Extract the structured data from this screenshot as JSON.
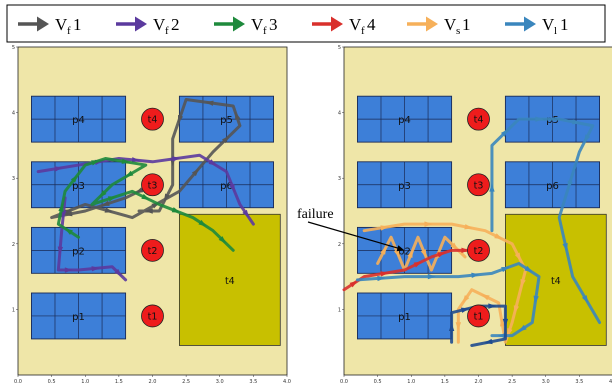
{
  "legend": [
    {
      "main": "V",
      "sub": "f",
      "num": "1",
      "color": "#555555"
    },
    {
      "main": "V",
      "sub": "f",
      "num": "2",
      "color": "#5b3a9e"
    },
    {
      "main": "V",
      "sub": "f",
      "num": "3",
      "color": "#1e8a3c"
    },
    {
      "main": "V",
      "sub": "f",
      "num": "4",
      "color": "#d9302c"
    },
    {
      "main": "V",
      "sub": "s",
      "num": "1",
      "color": "#f6b05a"
    },
    {
      "main": "V",
      "sub": "l",
      "num": "1",
      "color": "#3a86bd"
    }
  ],
  "panels": [
    {
      "xticks": [
        "0.0",
        "0.5",
        "1.0",
        "1.5",
        "2.0",
        "2.5",
        "3.0",
        "3.5",
        "4.0"
      ],
      "yticks": [
        "1",
        "2",
        "3",
        "4",
        "5"
      ],
      "blocks": [
        {
          "label": "p4",
          "x0": 0.2,
          "y0": 3.55,
          "x1": 1.6,
          "y1": 4.25
        },
        {
          "label": "p3",
          "x0": 0.2,
          "y0": 2.55,
          "x1": 1.6,
          "y1": 3.25
        },
        {
          "label": "p2",
          "x0": 0.2,
          "y0": 1.55,
          "x1": 1.6,
          "y1": 2.25
        },
        {
          "label": "p1",
          "x0": 0.2,
          "y0": 0.55,
          "x1": 1.6,
          "y1": 1.25
        },
        {
          "label": "p5",
          "x0": 2.4,
          "y0": 3.55,
          "x1": 3.8,
          "y1": 4.25
        },
        {
          "label": "p6",
          "x0": 2.4,
          "y0": 2.55,
          "x1": 3.8,
          "y1": 3.25
        }
      ],
      "stations": [
        {
          "label": "t4",
          "x": 2.0,
          "y": 3.9
        },
        {
          "label": "t3",
          "x": 2.0,
          "y": 2.9
        },
        {
          "label": "t2",
          "x": 2.0,
          "y": 1.9
        },
        {
          "label": "t1",
          "x": 2.0,
          "y": 0.9
        }
      ],
      "big_area": {
        "label": "t4",
        "x0": 2.4,
        "y0": 0.45,
        "x1": 3.9,
        "y1": 2.45
      },
      "trajectories": [
        {
          "color": "#555555",
          "points": [
            [
              2.0,
              2.9
            ],
            [
              1.6,
              2.7
            ],
            [
              1.0,
              2.5
            ],
            [
              0.5,
              2.4
            ],
            [
              1.0,
              2.6
            ],
            [
              1.7,
              2.4
            ],
            [
              2.4,
              2.8
            ],
            [
              2.9,
              3.4
            ],
            [
              3.3,
              3.8
            ],
            [
              3.2,
              4.1
            ],
            [
              2.5,
              4.2
            ],
            [
              2.3,
              3.6
            ],
            [
              2.3,
              2.9
            ],
            [
              2.1,
              2.5
            ],
            [
              1.8,
              2.5
            ]
          ]
        },
        {
          "color": "#5b3a9e",
          "points": [
            [
              0.3,
              3.1
            ],
            [
              0.9,
              3.2
            ],
            [
              1.5,
              3.3
            ],
            [
              2.0,
              3.25
            ],
            [
              2.7,
              3.35
            ],
            [
              3.1,
              3.1
            ],
            [
              3.3,
              2.6
            ],
            [
              3.5,
              2.3
            ]
          ]
        },
        {
          "color": "#5b3a9e",
          "points": [
            [
              0.7,
              2.7
            ],
            [
              0.65,
              2.2
            ],
            [
              0.6,
              1.6
            ],
            [
              0.9,
              1.6
            ],
            [
              1.4,
              1.65
            ],
            [
              1.6,
              1.45
            ]
          ]
        },
        {
          "color": "#1e8a3c",
          "points": [
            [
              0.9,
              2.1
            ],
            [
              0.6,
              2.3
            ],
            [
              0.7,
              2.8
            ],
            [
              1.0,
              3.2
            ],
            [
              1.3,
              3.3
            ],
            [
              1.9,
              3.2
            ],
            [
              1.4,
              2.9
            ],
            [
              1.1,
              2.6
            ],
            [
              1.7,
              2.8
            ],
            [
              2.1,
              2.6
            ],
            [
              2.6,
              2.4
            ],
            [
              2.9,
              2.2
            ],
            [
              3.2,
              1.9
            ]
          ]
        }
      ]
    },
    {
      "xticks": [
        "0.0",
        "0.5",
        "1.0",
        "1.5",
        "2.0",
        "2.5",
        "3.0",
        "3.5",
        "4.0"
      ],
      "yticks": [
        "1",
        "2",
        "3",
        "4",
        "5"
      ],
      "blocks": [
        {
          "label": "p4",
          "x0": 0.2,
          "y0": 3.55,
          "x1": 1.6,
          "y1": 4.25
        },
        {
          "label": "p3",
          "x0": 0.2,
          "y0": 2.55,
          "x1": 1.6,
          "y1": 3.25
        },
        {
          "label": "p2",
          "x0": 0.2,
          "y0": 1.55,
          "x1": 1.6,
          "y1": 2.25
        },
        {
          "label": "p1",
          "x0": 0.2,
          "y0": 0.55,
          "x1": 1.6,
          "y1": 1.25
        },
        {
          "label": "p5",
          "x0": 2.4,
          "y0": 3.55,
          "x1": 3.8,
          "y1": 4.25
        },
        {
          "label": "p6",
          "x0": 2.4,
          "y0": 2.55,
          "x1": 3.8,
          "y1": 3.25
        }
      ],
      "stations": [
        {
          "label": "t4",
          "x": 2.0,
          "y": 3.9
        },
        {
          "label": "t3",
          "x": 2.0,
          "y": 2.9
        },
        {
          "label": "t2",
          "x": 2.0,
          "y": 1.9
        },
        {
          "label": "t1",
          "x": 2.0,
          "y": 0.9
        }
      ],
      "big_area": {
        "label": "t4",
        "x0": 2.4,
        "y0": 0.45,
        "x1": 3.9,
        "y1": 2.45
      },
      "trajectories": [
        {
          "color": "#f6b05a",
          "points": [
            [
              0.3,
              2.2
            ],
            [
              0.9,
              2.3
            ],
            [
              1.6,
              2.3
            ],
            [
              2.1,
              2.2
            ],
            [
              2.5,
              2.0
            ],
            [
              2.7,
              1.6
            ],
            [
              2.6,
              1.2
            ],
            [
              2.5,
              0.8
            ],
            [
              2.4,
              0.5
            ],
            [
              2.3,
              1.1
            ],
            [
              1.9,
              1.3
            ],
            [
              1.7,
              1.0
            ],
            [
              1.7,
              0.5
            ]
          ]
        },
        {
          "color": "#f6b05a",
          "points": [
            [
              0.5,
              1.7
            ],
            [
              0.7,
              2.1
            ],
            [
              0.9,
              1.6
            ],
            [
              1.1,
              2.1
            ],
            [
              1.3,
              1.6
            ],
            [
              1.5,
              2.1
            ],
            [
              1.8,
              1.8
            ]
          ]
        },
        {
          "color": "#d9302c",
          "points": [
            [
              0.0,
              1.3
            ],
            [
              0.3,
              1.5
            ],
            [
              0.9,
              1.6
            ],
            [
              1.3,
              1.8
            ],
            [
              1.6,
              1.9
            ],
            [
              2.0,
              1.9
            ]
          ]
        },
        {
          "color": "#3a86bd",
          "points": [
            [
              2.2,
              2.2
            ],
            [
              2.2,
              3.5
            ],
            [
              2.6,
              3.9
            ],
            [
              3.2,
              3.9
            ],
            [
              3.7,
              3.8
            ],
            [
              3.5,
              3.4
            ],
            [
              3.2,
              2.4
            ],
            [
              3.4,
              1.5
            ],
            [
              3.8,
              0.8
            ]
          ]
        },
        {
          "color": "#3a86bd",
          "points": [
            [
              0.2,
              1.45
            ],
            [
              0.9,
              1.5
            ],
            [
              1.7,
              1.5
            ],
            [
              2.2,
              1.55
            ],
            [
              2.6,
              1.7
            ],
            [
              2.9,
              1.5
            ],
            [
              2.8,
              0.8
            ],
            [
              2.5,
              0.6
            ],
            [
              2.2,
              0.6
            ]
          ]
        },
        {
          "color": "#1f4b8f",
          "points": [
            [
              1.6,
              0.5
            ],
            [
              1.6,
              0.95
            ],
            [
              2.0,
              1.05
            ],
            [
              2.4,
              1.05
            ],
            [
              2.4,
              0.55
            ],
            [
              1.9,
              0.45
            ]
          ]
        }
      ],
      "annotation": {
        "text": "failure",
        "target": [
          0.9,
          1.9
        ]
      }
    }
  ]
}
